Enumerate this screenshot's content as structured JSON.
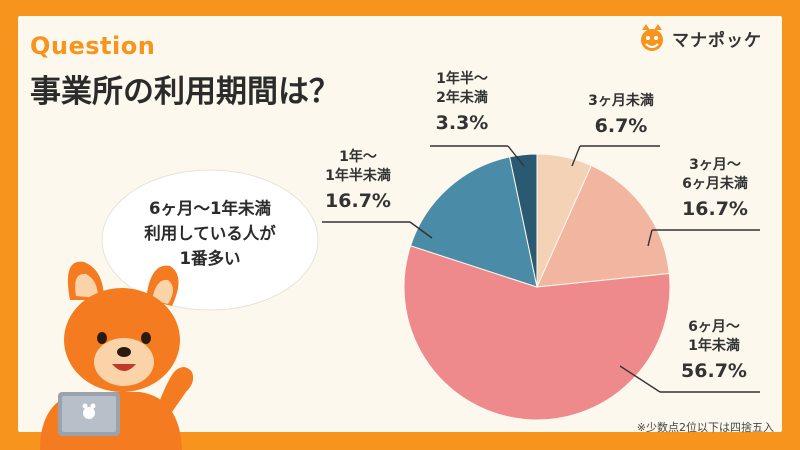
{
  "header": {
    "question_label": "Question",
    "question_title": "事業所の利用期間は？"
  },
  "brand": {
    "name": "マナポッケ",
    "accent": "#f7941d"
  },
  "callout": {
    "line1": "6ヶ月〜1年未満",
    "line2": "利用している人が",
    "line3": "1番多い"
  },
  "note": "※少数点2位以下は四捨五入",
  "chart_data": {
    "type": "pie",
    "start": "top",
    "direction": "clockwise",
    "unit": "%",
    "slices": [
      {
        "label_line1": "3ヶ月未満",
        "label_line2": "",
        "value": 6.7,
        "value_text": "6.7%",
        "color": "#f3d2b6"
      },
      {
        "label_line1": "3ヶ月〜",
        "label_line2": "6ヶ月未満",
        "value": 16.7,
        "value_text": "16.7%",
        "color": "#f2b5a0"
      },
      {
        "label_line1": "6ヶ月〜",
        "label_line2": "1年未満",
        "value": 56.7,
        "value_text": "56.7%",
        "color": "#ef8a8c"
      },
      {
        "label_line1": "1年〜",
        "label_line2": "1年半未満",
        "value": 16.7,
        "value_text": "16.7%",
        "color": "#4a8ba7"
      },
      {
        "label_line1": "1年半〜",
        "label_line2": "2年未満",
        "value": 3.3,
        "value_text": "3.3%",
        "color": "#2a5a72"
      }
    ]
  }
}
